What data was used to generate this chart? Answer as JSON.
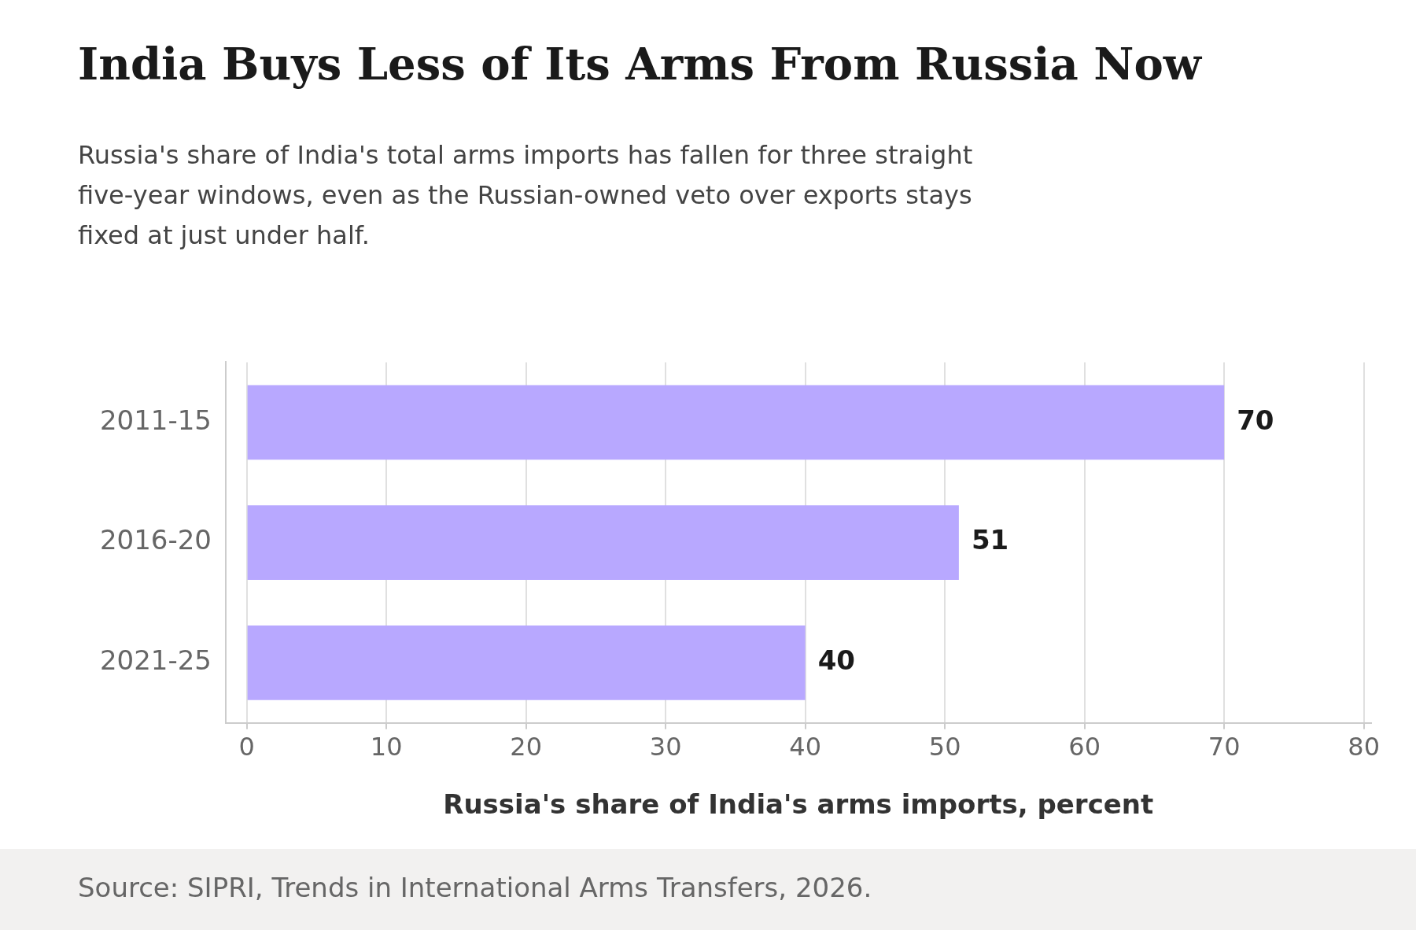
{
  "chart_data": {
    "type": "bar",
    "orientation": "horizontal",
    "title": "India Buys Less of Its Arms From Russia Now",
    "subtitle": "Russia's share of India's total arms imports has fallen for three straight five-year windows, even as the Russian-owned veto over exports stays fixed at just under half.",
    "xlabel": "Russia's share of India's arms imports, percent",
    "categories": [
      "2011-15",
      "2016-20",
      "2021-25"
    ],
    "values": [
      70,
      51,
      40
    ],
    "color": "#b8a8ff",
    "xlim": [
      -1.5,
      80.5
    ],
    "xticks": [
      0,
      10,
      20,
      30,
      40,
      50,
      60,
      70,
      80
    ],
    "grid": "x",
    "legend": false,
    "data_labels": true,
    "annotations": [
      "Source: SIPRI, Trends in International Arms Transfers, 2026."
    ]
  }
}
